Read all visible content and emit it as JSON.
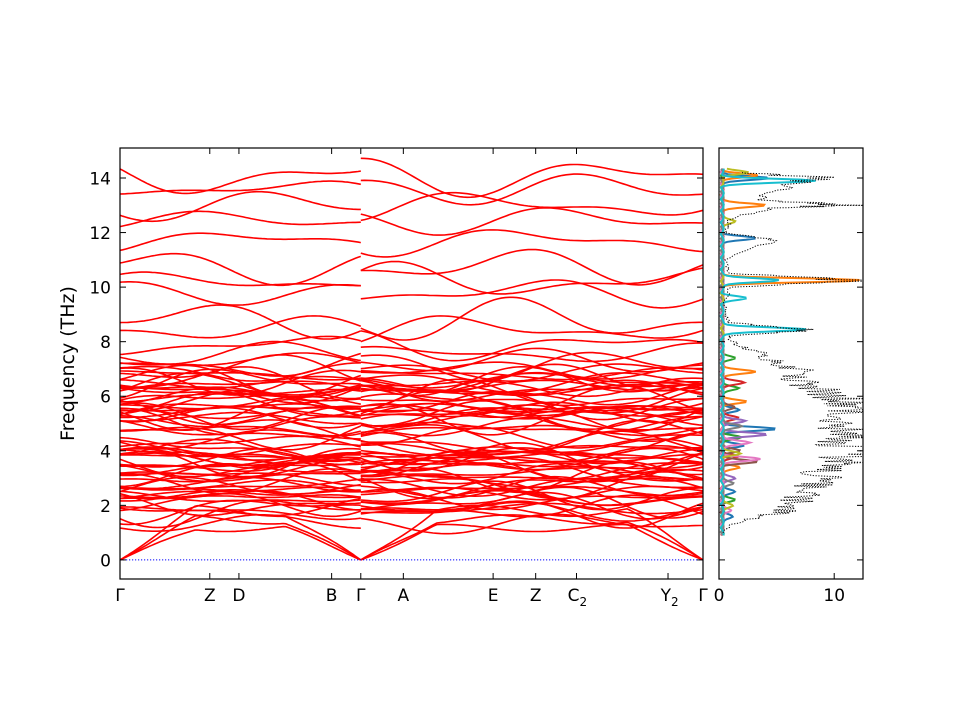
{
  "chart_data": [
    {
      "type": "line",
      "panel": "phonon-band-structure",
      "ylabel": "Frequency (THz)",
      "xlabel": "",
      "title": "",
      "ylim": [
        -0.7,
        15.1
      ],
      "yticks": [
        0,
        2,
        4,
        6,
        8,
        10,
        12,
        14
      ],
      "kpath": [
        {
          "label": "Γ",
          "sub": "",
          "pos": 0.0
        },
        {
          "label": "Z",
          "sub": "",
          "pos": 1.54
        },
        {
          "label": "D",
          "sub": "",
          "pos": 2.04
        },
        {
          "label": "B",
          "sub": "",
          "pos": 3.63
        },
        {
          "label": "Γ",
          "sub": "",
          "pos": 4.13
        },
        {
          "label": "A",
          "sub": "",
          "pos": 4.86
        },
        {
          "label": "E",
          "sub": "",
          "pos": 6.4
        },
        {
          "label": "Z",
          "sub": "",
          "pos": 7.13
        },
        {
          "label": "C",
          "sub": "2",
          "pos": 7.83
        },
        {
          "label": "Y",
          "sub": "2",
          "pos": 9.4
        },
        {
          "label": "Γ",
          "sub": "",
          "pos": 10.0
        }
      ],
      "segment_breaks": [
        4.13
      ],
      "zero_line": {
        "value": 0,
        "style": "dotted",
        "color": "#0000ff"
      },
      "band_color": "#ff0000",
      "band_count": 90,
      "highlighted_band_levels_thz": [
        14.05,
        13.6,
        13.0,
        12.45,
        11.7,
        10.75,
        10.2,
        9.8,
        8.8,
        8.45,
        7.85,
        7.55,
        6.9,
        6.6,
        5.8,
        5.4,
        4.9,
        4.6,
        4.1,
        3.7,
        3.2,
        2.7,
        2.2,
        1.8
      ]
    },
    {
      "type": "line",
      "panel": "phonon-dos",
      "xlim": [
        0,
        12.5
      ],
      "xticks": [
        0,
        10
      ],
      "ylim": [
        -0.7,
        15.1
      ],
      "total_dos_style": {
        "color": "#000000",
        "line": "dotted"
      },
      "total_dos": {
        "freq": [
          1.0,
          1.3,
          1.6,
          1.8,
          2.0,
          2.3,
          2.6,
          2.9,
          3.2,
          3.5,
          3.8,
          4.0,
          4.3,
          4.6,
          4.9,
          5.2,
          5.5,
          5.8,
          6.1,
          6.4,
          6.7,
          7.0,
          7.3,
          7.6,
          7.9,
          8.2,
          8.45,
          8.7,
          9.0,
          9.5,
          10.0,
          10.25,
          10.5,
          11.0,
          11.7,
          12.0,
          12.5,
          12.9,
          13.0,
          13.2,
          13.6,
          14.0,
          14.2
        ],
        "dos": [
          0.3,
          1.0,
          3.5,
          6.0,
          6.5,
          7.0,
          7.8,
          8.5,
          9.0,
          10.2,
          11.5,
          12.0,
          11.0,
          12.0,
          11.0,
          10.0,
          11.5,
          12.0,
          9.5,
          8.0,
          6.5,
          7.0,
          5.0,
          3.5,
          1.5,
          0.8,
          8.0,
          0.8,
          0.6,
          0.5,
          1.0,
          12.5,
          1.0,
          0.5,
          5.2,
          0.6,
          1.0,
          4.0,
          12.0,
          3.0,
          5.0,
          9.0,
          2.0
        ]
      },
      "partial_dos": [
        {
          "color": "#1f77b4",
          "peaks": [
            [
              1.6,
              1.0
            ],
            [
              2.5,
              1.2
            ],
            [
              4.2,
              2.0
            ],
            [
              4.8,
              4.6
            ],
            [
              5.5,
              1.6
            ],
            [
              11.8,
              2.8
            ],
            [
              14.0,
              4.0
            ]
          ]
        },
        {
          "color": "#ff7f0e",
          "peaks": [
            [
              3.4,
              1.5
            ],
            [
              5.8,
              2.0
            ],
            [
              6.9,
              3.0
            ],
            [
              10.25,
              12.0
            ],
            [
              13.0,
              3.8
            ],
            [
              14.1,
              3.0
            ]
          ]
        },
        {
          "color": "#2ca02c",
          "peaks": [
            [
              2.2,
              1.0
            ],
            [
              4.5,
              1.6
            ],
            [
              6.3,
              1.5
            ],
            [
              7.4,
              1.0
            ]
          ]
        },
        {
          "color": "#d62728",
          "peaks": [
            [
              3.8,
              1.4
            ],
            [
              5.2,
              1.5
            ],
            [
              6.5,
              2.0
            ]
          ]
        },
        {
          "color": "#9467bd",
          "peaks": [
            [
              3.0,
              1.2
            ],
            [
              4.6,
              3.8
            ],
            [
              5.1,
              2.0
            ]
          ]
        },
        {
          "color": "#8c564b",
          "peaks": [
            [
              3.6,
              3.0
            ],
            [
              4.0,
              1.5
            ],
            [
              5.6,
              1.2
            ]
          ]
        },
        {
          "color": "#e377c2",
          "peaks": [
            [
              1.8,
              0.8
            ],
            [
              3.7,
              3.2
            ],
            [
              4.3,
              2.5
            ]
          ]
        },
        {
          "color": "#7f7f7f",
          "peaks": [
            [
              2.8,
              1.0
            ],
            [
              4.9,
              1.8
            ]
          ]
        },
        {
          "color": "#bcbd22",
          "peaks": [
            [
              2.0,
              1.0
            ],
            [
              3.9,
              1.5
            ],
            [
              12.4,
              1.2
            ],
            [
              14.2,
              2.2
            ]
          ]
        },
        {
          "color": "#17becf",
          "peaks": [
            [
              8.45,
              7.4
            ],
            [
              9.6,
              2.0
            ],
            [
              13.9,
              8.0
            ],
            [
              10.25,
              5.0
            ]
          ]
        }
      ]
    }
  ]
}
